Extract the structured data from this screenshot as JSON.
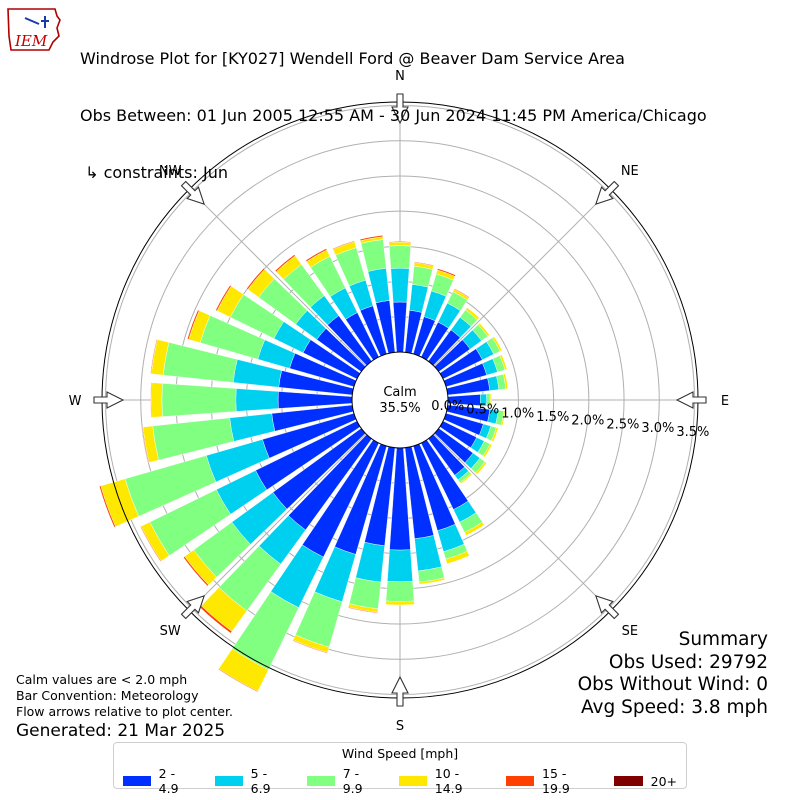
{
  "title": {
    "line1": "Windrose Plot for [KY027] Wendell Ford @ Beaver Dam Service Area",
    "line2": "Obs Between: 01 Jun 2005 12:55 AM - 30 Jun 2024 11:45 PM America/Chicago",
    "line3": " ↳ constraints: Jun"
  },
  "logo": {
    "text": "IEM"
  },
  "calm": {
    "label": "Calm",
    "value": "35.5%"
  },
  "footer": {
    "note1": "Calm values are < 2.0 mph",
    "note2": "Bar Convention: Meteorology",
    "note3": "Flow arrows relative to plot center.",
    "generated": "Generated: 21 Mar 2025"
  },
  "summary": {
    "title": "Summary",
    "obs_used": "Obs Used: 29792",
    "obs_without_wind": "Obs Without Wind: 0",
    "avg_speed": "Avg Speed: 3.8 mph"
  },
  "legend": {
    "title": "Wind Speed [mph]",
    "items": [
      {
        "label": "2 - 4.9",
        "color": "#0030ff"
      },
      {
        "label": "5 - 6.9",
        "color": "#00d0f0"
      },
      {
        "label": "7 - 9.9",
        "color": "#80ff80"
      },
      {
        "label": "10 - 14.9",
        "color": "#ffe800"
      },
      {
        "label": "15 - 19.9",
        "color": "#ff4000"
      },
      {
        "label": "20+",
        "color": "#800000"
      }
    ]
  },
  "chart_data": {
    "type": "windrose",
    "bar_convention": "meteorology",
    "radial_unit": "%",
    "radial_ticks": [
      "0.0%",
      "0.5%",
      "1.0%",
      "1.5%",
      "2.0%",
      "2.5%",
      "3.0%",
      "3.5%"
    ],
    "rmax": 3.55,
    "directions": [
      "N",
      "NE",
      "E",
      "SE",
      "S",
      "SW",
      "W",
      "NW"
    ],
    "speed_bins": [
      "2 - 4.9",
      "5 - 6.9",
      "7 - 9.9",
      "10 - 14.9",
      "15 - 19.9",
      "20+"
    ],
    "sector_width_deg": 10,
    "sectors": [
      {
        "dir": 0,
        "values": [
          0.71,
          0.48,
          0.32,
          0.05,
          0.01,
          0.0
        ]
      },
      {
        "dir": 10,
        "values": [
          0.6,
          0.37,
          0.26,
          0.05,
          0.01,
          0.0
        ]
      },
      {
        "dir": 20,
        "values": [
          0.55,
          0.38,
          0.25,
          0.06,
          0.02,
          0.0
        ]
      },
      {
        "dir": 30,
        "values": [
          0.55,
          0.3,
          0.18,
          0.04,
          0.01,
          0.0
        ]
      },
      {
        "dir": 40,
        "values": [
          0.55,
          0.22,
          0.13,
          0.04,
          0.0,
          0.0
        ]
      },
      {
        "dir": 50,
        "values": [
          0.55,
          0.2,
          0.11,
          0.03,
          0.0,
          0.0
        ]
      },
      {
        "dir": 60,
        "values": [
          0.62,
          0.18,
          0.1,
          0.03,
          0.0,
          0.0
        ]
      },
      {
        "dir": 70,
        "values": [
          0.6,
          0.16,
          0.11,
          0.03,
          0.0,
          0.0
        ]
      },
      {
        "dir": 80,
        "values": [
          0.6,
          0.13,
          0.1,
          0.03,
          0.0,
          0.0
        ]
      },
      {
        "dir": 90,
        "values": [
          0.46,
          0.09,
          0.05,
          0.02,
          0.0,
          0.0
        ]
      },
      {
        "dir": 100,
        "values": [
          0.6,
          0.12,
          0.08,
          0.02,
          0.0,
          0.0
        ]
      },
      {
        "dir": 110,
        "values": [
          0.55,
          0.11,
          0.08,
          0.03,
          0.0,
          0.0
        ]
      },
      {
        "dir": 120,
        "values": [
          0.53,
          0.12,
          0.09,
          0.03,
          0.0,
          0.0
        ]
      },
      {
        "dir": 130,
        "values": [
          0.6,
          0.12,
          0.09,
          0.03,
          0.0,
          0.0
        ]
      },
      {
        "dir": 140,
        "values": [
          0.64,
          0.08,
          0.05,
          0.02,
          0.0,
          0.0
        ]
      },
      {
        "dir": 150,
        "values": [
          1.05,
          0.2,
          0.16,
          0.05,
          0.0,
          0.0
        ]
      },
      {
        "dir": 160,
        "values": [
          1.25,
          0.31,
          0.11,
          0.07,
          0.0,
          0.0
        ]
      },
      {
        "dir": 170,
        "values": [
          1.3,
          0.46,
          0.16,
          0.03,
          0.0,
          0.0
        ]
      },
      {
        "dir": 180,
        "values": [
          1.45,
          0.45,
          0.28,
          0.05,
          0.0,
          0.0
        ]
      },
      {
        "dir": 190,
        "values": [
          1.4,
          0.52,
          0.38,
          0.05,
          0.01,
          0.0
        ]
      },
      {
        "dir": 200,
        "values": [
          1.6,
          0.7,
          0.67,
          0.08,
          0.01,
          0.0
        ]
      },
      {
        "dir": 210,
        "values": [
          1.8,
          0.8,
          0.98,
          0.34,
          0.01,
          0.0
        ]
      },
      {
        "dir": 220,
        "values": [
          1.6,
          0.6,
          0.82,
          0.36,
          0.03,
          0.0
        ]
      },
      {
        "dir": 230,
        "values": [
          1.55,
          0.72,
          0.67,
          0.16,
          0.02,
          0.0
        ]
      },
      {
        "dir": 240,
        "values": [
          1.6,
          0.62,
          1.05,
          0.14,
          0.01,
          0.0
        ]
      },
      {
        "dir": 250,
        "values": [
          1.35,
          0.83,
          1.2,
          0.36,
          0.02,
          0.0
        ]
      },
      {
        "dir": 260,
        "values": [
          1.15,
          0.6,
          1.1,
          0.14,
          0.01,
          0.0
        ]
      },
      {
        "dir": 270,
        "values": [
          1.05,
          0.6,
          1.05,
          0.15,
          0.01,
          0.0
        ]
      },
      {
        "dir": 280,
        "values": [
          1.05,
          0.65,
          1.0,
          0.17,
          0.01,
          0.0
        ]
      },
      {
        "dir": 290,
        "values": [
          0.95,
          0.47,
          0.85,
          0.17,
          0.02,
          0.0
        ]
      },
      {
        "dir": 300,
        "values": [
          0.85,
          0.46,
          0.69,
          0.21,
          0.02,
          0.0
        ]
      },
      {
        "dir": 310,
        "values": [
          0.78,
          0.37,
          0.65,
          0.19,
          0.02,
          0.0
        ]
      },
      {
        "dir": 320,
        "values": [
          0.8,
          0.35,
          0.55,
          0.15,
          0.02,
          0.0
        ]
      },
      {
        "dir": 330,
        "values": [
          0.7,
          0.39,
          0.5,
          0.1,
          0.02,
          0.0
        ]
      },
      {
        "dir": 340,
        "values": [
          0.71,
          0.38,
          0.48,
          0.09,
          0.01,
          0.0
        ]
      },
      {
        "dir": 350,
        "values": [
          0.74,
          0.46,
          0.41,
          0.04,
          0.02,
          0.0
        ]
      }
    ]
  }
}
